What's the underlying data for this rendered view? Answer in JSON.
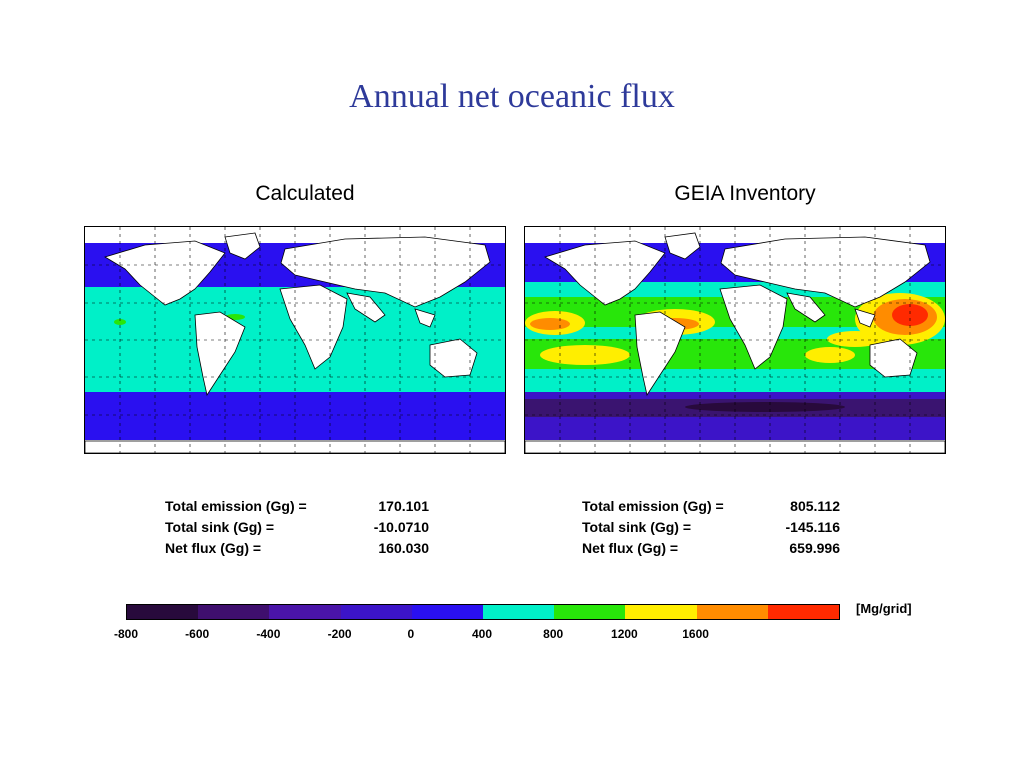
{
  "slide": {
    "title": "Annual net oceanic flux"
  },
  "maps": [
    {
      "title": "Calculated",
      "stats": [
        {
          "label": "Total emission (Gg)  =",
          "value": "170.101"
        },
        {
          "label": "Total sink (Gg)  =",
          "value": "-10.0710"
        },
        {
          "label": "Net flux (Gg)  =",
          "value": "160.030"
        }
      ]
    },
    {
      "title": "GEIA Inventory",
      "stats": [
        {
          "label": "Total emission (Gg)  =",
          "value": "805.112"
        },
        {
          "label": "Total sink (Gg)  =",
          "value": "-145.116"
        },
        {
          "label": "Net flux (Gg)  =",
          "value": "659.996"
        }
      ]
    }
  ],
  "colorbar": {
    "unit": "[Mg/grid]",
    "ticks": [
      "-800",
      "-600",
      "-400",
      "-200",
      "0",
      "400",
      "800",
      "1200",
      "1600"
    ],
    "colors": [
      "#280a3c",
      "#3f0f6e",
      "#4a14a8",
      "#3c14c8",
      "#2a10f0",
      "#00f0c8",
      "#28e60a",
      "#ffee00",
      "#ff8c00",
      "#ff2a00"
    ]
  },
  "legend_colors": {
    "land": "#ffffff",
    "ocean_sink_dark": "#3a1470",
    "ocean_sink": "#3c14c8",
    "ocean_low": "#00f0c8",
    "ocean_mid": "#28e60a",
    "ocean_high": "#ffee00",
    "ocean_higher": "#ff8c00",
    "ocean_max": "#ff2a00"
  }
}
